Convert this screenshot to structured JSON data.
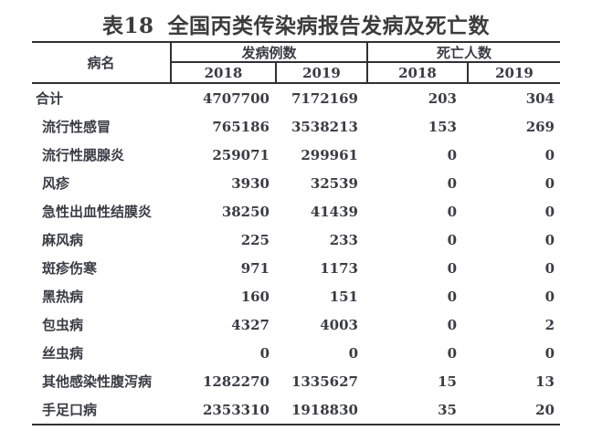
{
  "title": {
    "prefix": "表18",
    "main": "全国丙类传染病报告发病及死亡数"
  },
  "table": {
    "header": {
      "disease_col": "病名",
      "groups": [
        {
          "label": "发病例数",
          "years": [
            "2018",
            "2019"
          ]
        },
        {
          "label": "死亡人数",
          "years": [
            "2018",
            "2019"
          ]
        }
      ]
    },
    "rows": [
      {
        "name": "合计",
        "total": true,
        "cases_2018": "4707700",
        "cases_2019": "7172169",
        "deaths_2018": "203",
        "deaths_2019": "304"
      },
      {
        "name": "流行性感冒",
        "total": false,
        "cases_2018": "765186",
        "cases_2019": "3538213",
        "deaths_2018": "153",
        "deaths_2019": "269"
      },
      {
        "name": "流行性腮腺炎",
        "total": false,
        "cases_2018": "259071",
        "cases_2019": "299961",
        "deaths_2018": "0",
        "deaths_2019": "0"
      },
      {
        "name": "风疹",
        "total": false,
        "cases_2018": "3930",
        "cases_2019": "32539",
        "deaths_2018": "0",
        "deaths_2019": "0"
      },
      {
        "name": "急性出血性结膜炎",
        "total": false,
        "cases_2018": "38250",
        "cases_2019": "41439",
        "deaths_2018": "0",
        "deaths_2019": "0"
      },
      {
        "name": "麻风病",
        "total": false,
        "cases_2018": "225",
        "cases_2019": "233",
        "deaths_2018": "0",
        "deaths_2019": "0"
      },
      {
        "name": "斑疹伤寒",
        "total": false,
        "cases_2018": "971",
        "cases_2019": "1173",
        "deaths_2018": "0",
        "deaths_2019": "0"
      },
      {
        "name": "黑热病",
        "total": false,
        "cases_2018": "160",
        "cases_2019": "151",
        "deaths_2018": "0",
        "deaths_2019": "0"
      },
      {
        "name": "包虫病",
        "total": false,
        "cases_2018": "4327",
        "cases_2019": "4003",
        "deaths_2018": "0",
        "deaths_2019": "2"
      },
      {
        "name": "丝虫病",
        "total": false,
        "cases_2018": "0",
        "cases_2019": "0",
        "deaths_2018": "0",
        "deaths_2019": "0"
      },
      {
        "name": "其他感染性腹泻病",
        "total": false,
        "cases_2018": "1282270",
        "cases_2019": "1335627",
        "deaths_2018": "15",
        "deaths_2019": "13"
      },
      {
        "name": "手足口病",
        "total": false,
        "cases_2018": "2353310",
        "cases_2019": "1918830",
        "deaths_2018": "35",
        "deaths_2019": "20"
      }
    ]
  },
  "colors": {
    "text": "#3b3b44",
    "border": "#303034",
    "title": "#3c3c3c",
    "background": "#ffffff"
  }
}
